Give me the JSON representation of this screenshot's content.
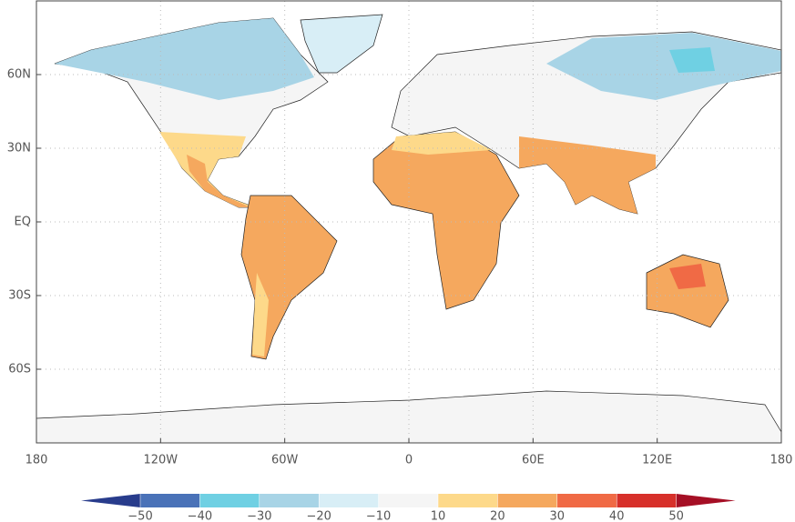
{
  "map": {
    "xlim": [
      -180,
      180
    ],
    "ylim": [
      -90,
      90
    ],
    "xticks": [
      {
        "value": -180,
        "label": "180"
      },
      {
        "value": -120,
        "label": "120W"
      },
      {
        "value": -60,
        "label": "60W"
      },
      0,
      {
        "value": 60,
        "label": "60E"
      },
      {
        "value": 120,
        "label": "120E"
      },
      {
        "value": 180,
        "label": "180"
      }
    ],
    "yticks": [
      {
        "value": 60,
        "label": "60N"
      },
      {
        "value": 30,
        "label": "30N"
      },
      {
        "value": 0,
        "label": "EQ"
      },
      {
        "value": -30,
        "label": "30S"
      },
      {
        "value": -60,
        "label": "60S"
      }
    ],
    "grid": true
  },
  "colorbar": {
    "ticks": [
      {
        "value": -50,
        "label": "−50"
      },
      {
        "value": -40,
        "label": "−40"
      },
      {
        "value": -30,
        "label": "−30"
      },
      {
        "value": -20,
        "label": "−20"
      },
      {
        "value": -10,
        "label": "−10"
      },
      10,
      20,
      30,
      40,
      50
    ],
    "colors": [
      "#283c8c",
      "#4a72b8",
      "#6fd0e3",
      "#a8d4e6",
      "#d8eef6",
      "#f5f5f5",
      "#fdd98a",
      "#f5a85e",
      "#f06a45",
      "#d7302a",
      "#a50f25"
    ]
  }
}
